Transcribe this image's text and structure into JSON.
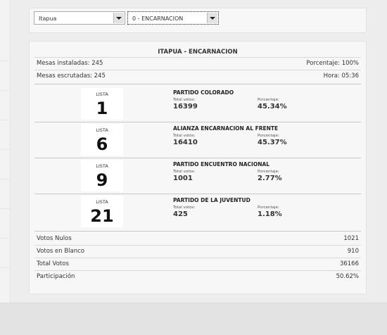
{
  "selectors": {
    "department": "Itapua",
    "district": "0 - ENCARNACION"
  },
  "results": {
    "title": "ITAPUA - ENCARNACION",
    "mesas_instaladas": "Mesas instaladas: 245",
    "porcentaje": "Porcentaje: 100%",
    "mesas_escrutadas": "Mesas escrutadas: 245",
    "hora": "Hora: 05:36",
    "parties": [
      {
        "lista_label": "LISTA",
        "lista": "1",
        "name": "PARTIDO COLORADO",
        "votes_label": "Total votos:",
        "votes": "16399",
        "pct_label": "Porcentaje:",
        "pct": "45.34%"
      },
      {
        "lista_label": "LISTA",
        "lista": "6",
        "name": "ALIANZA ENCARNACION AL FRENTE",
        "votes_label": "Total votos:",
        "votes": "16410",
        "pct_label": "Porcentaje:",
        "pct": "45.37%"
      },
      {
        "lista_label": "LISTA",
        "lista": "9",
        "name": "PARTIDO ENCUENTRO NACIONAL",
        "votes_label": "Total votos:",
        "votes": "1001",
        "pct_label": "Porcentaje:",
        "pct": "2.77%"
      },
      {
        "lista_label": "LISTA",
        "lista": "21",
        "name": "PARTIDO DE LA JUVENTUD",
        "votes_label": "Total votos:",
        "votes": "425",
        "pct_label": "Porcentaje:",
        "pct": "1.18%"
      }
    ],
    "summary": [
      {
        "label": "Votos Nulos",
        "value": "1021"
      },
      {
        "label": "Votos en Blanco",
        "value": "910"
      },
      {
        "label": "Total Votos",
        "value": "36166"
      },
      {
        "label": "Participación",
        "value": "50.62%"
      }
    ]
  }
}
